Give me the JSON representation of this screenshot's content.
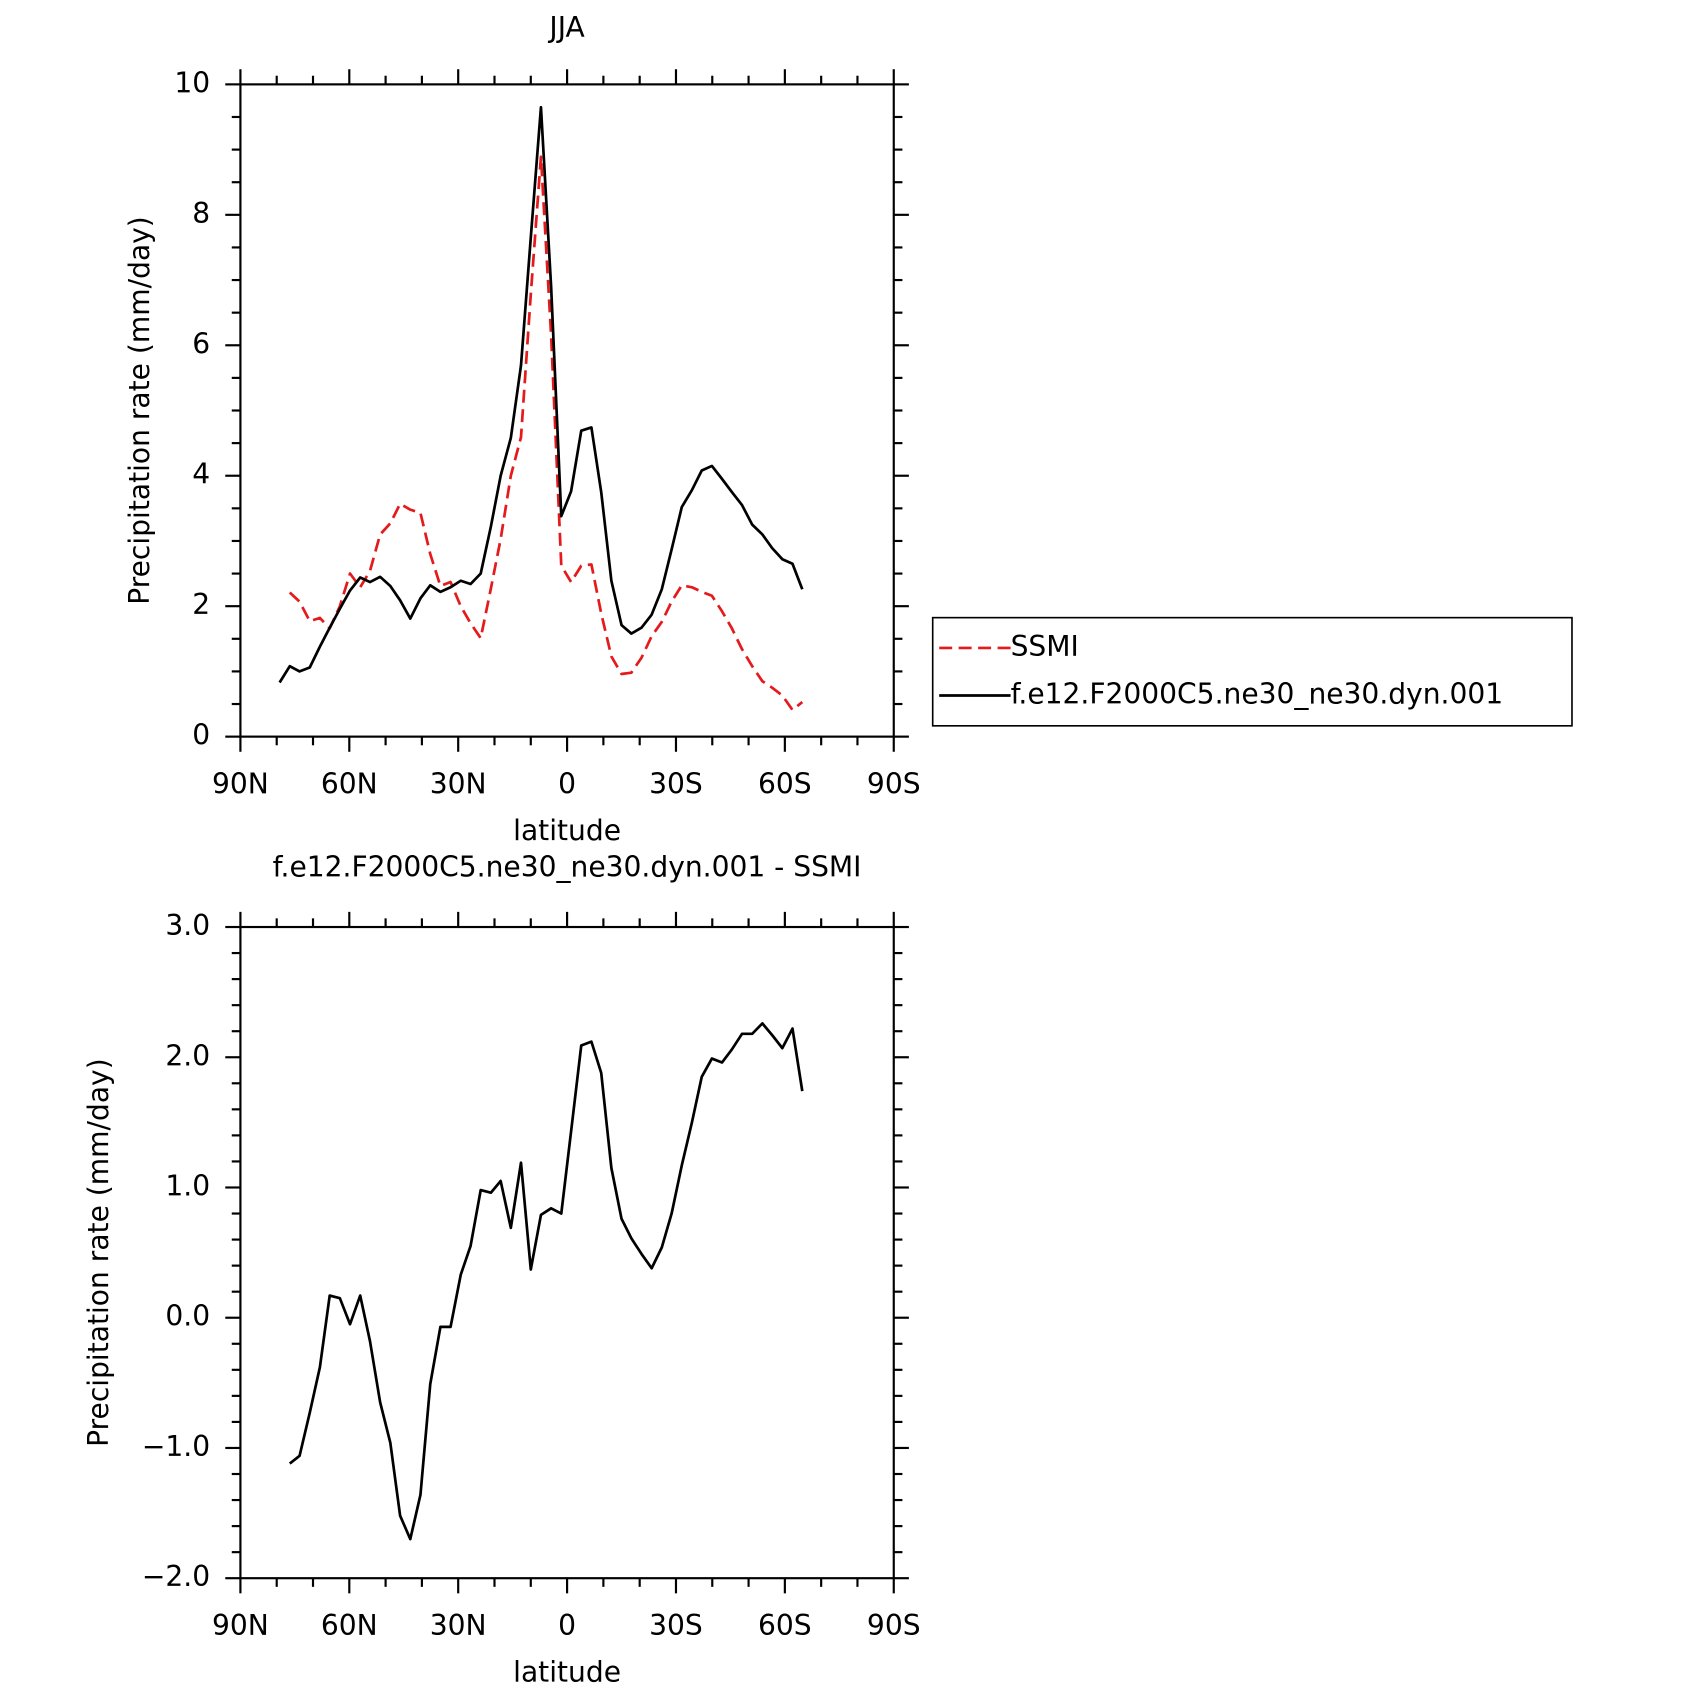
{
  "chart_data": [
    {
      "type": "line",
      "title": "JJA",
      "xlabel": "latitude",
      "ylabel": "Precipitation rate (mm/day)",
      "x": [
        79.2,
        76.4,
        73.7,
        70.9,
        68.1,
        65.4,
        62.6,
        59.8,
        57.0,
        54.3,
        51.5,
        48.7,
        46.0,
        43.2,
        40.4,
        37.7,
        34.9,
        32.1,
        29.3,
        26.6,
        23.8,
        21.0,
        18.3,
        15.5,
        12.7,
        10.0,
        7.2,
        4.4,
        1.6,
        -1.1,
        -3.9,
        -6.7,
        -9.4,
        -12.2,
        -15.0,
        -17.7,
        -20.5,
        -23.3,
        -26.1,
        -28.8,
        -31.6,
        -34.4,
        -37.1,
        -39.9,
        -42.7,
        -45.4,
        -48.2,
        -51.0,
        -53.8,
        -56.5,
        -59.3,
        -62.1,
        -64.8
      ],
      "series": [
        {
          "name": "SSMI",
          "color": "#e41a1c",
          "dashed": true,
          "values": [
            null,
            2.21,
            2.07,
            1.77,
            1.82,
            1.66,
            2.0,
            2.5,
            2.29,
            2.54,
            3.1,
            3.27,
            3.57,
            3.48,
            3.43,
            2.8,
            2.31,
            2.37,
            2.0,
            1.74,
            1.51,
            2.27,
            3.03,
            4.0,
            4.59,
            6.78,
            8.89,
            6.15,
            2.62,
            2.37,
            2.62,
            2.64,
            1.89,
            1.23,
            0.96,
            0.98,
            1.21,
            1.54,
            1.76,
            2.07,
            2.32,
            2.29,
            2.22,
            2.16,
            1.92,
            1.66,
            1.34,
            1.08,
            0.85,
            0.75,
            0.63,
            0.41,
            0.53
          ]
        },
        {
          "name": "f.e12.F2000C5.ne30_ne30.dyn.001",
          "color": "#000000",
          "dashed": false,
          "values": [
            0.83,
            1.08,
            1.0,
            1.06,
            1.38,
            1.67,
            1.96,
            2.24,
            2.44,
            2.37,
            2.45,
            2.31,
            2.09,
            1.81,
            2.12,
            2.32,
            2.22,
            2.29,
            2.39,
            2.34,
            2.5,
            3.22,
            4.0,
            4.58,
            5.69,
            7.65,
            9.65,
            6.9,
            3.38,
            3.76,
            4.69,
            4.74,
            3.75,
            2.39,
            1.71,
            1.58,
            1.67,
            1.87,
            2.26,
            2.87,
            3.52,
            3.78,
            4.08,
            4.15,
            3.95,
            3.75,
            3.55,
            3.25,
            3.1,
            2.89,
            2.72,
            2.65,
            2.26
          ]
        }
      ],
      "xlim": [
        90,
        -90
      ],
      "xticks": [
        {
          "value": 90,
          "label": "90N"
        },
        {
          "value": 60,
          "label": "60N"
        },
        {
          "value": 30,
          "label": "30N"
        },
        0,
        {
          "value": -30,
          "label": "30S"
        },
        {
          "value": -60,
          "label": "60S"
        },
        {
          "value": -90,
          "label": "90S"
        }
      ],
      "ylim": [
        0,
        10
      ],
      "yticks": [
        0,
        2,
        4,
        6,
        8,
        10
      ],
      "legend": "right"
    },
    {
      "type": "line",
      "title": "f.e12.F2000C5.ne30_ne30.dyn.001 - SSMI",
      "xlabel": "latitude",
      "ylabel": "Precipitation rate (mm/day)",
      "x": [
        79.2,
        76.4,
        73.7,
        70.9,
        68.1,
        65.4,
        62.6,
        59.8,
        57.0,
        54.3,
        51.5,
        48.7,
        46.0,
        43.2,
        40.4,
        37.7,
        34.9,
        32.1,
        29.3,
        26.6,
        23.8,
        21.0,
        18.3,
        15.5,
        12.7,
        10.0,
        7.2,
        4.4,
        1.6,
        -1.1,
        -3.9,
        -6.7,
        -9.4,
        -12.2,
        -15.0,
        -17.7,
        -20.5,
        -23.3,
        -26.1,
        -28.8,
        -31.6,
        -34.4,
        -37.1,
        -39.9,
        -42.7,
        -45.4,
        -48.2,
        -51.0,
        -53.8,
        -56.5,
        -59.3,
        -62.1,
        -64.8
      ],
      "series": [
        {
          "color": "#000000",
          "dashed": false,
          "values": [
            null,
            -1.12,
            -1.06,
            -0.73,
            -0.38,
            0.17,
            0.15,
            -0.05,
            0.17,
            -0.18,
            -0.65,
            -0.96,
            -1.52,
            -1.7,
            -1.36,
            -0.51,
            -0.07,
            -0.07,
            0.33,
            0.55,
            0.98,
            0.96,
            1.05,
            0.69,
            1.19,
            0.37,
            0.79,
            0.84,
            0.8,
            1.43,
            2.09,
            2.12,
            1.88,
            1.15,
            0.76,
            0.61,
            0.49,
            0.38,
            0.54,
            0.8,
            1.17,
            1.5,
            1.85,
            1.99,
            1.96,
            2.06,
            2.18,
            2.18,
            2.26,
            2.17,
            2.07,
            2.22,
            1.74
          ]
        }
      ],
      "xlim": [
        90,
        -90
      ],
      "xticks": [
        {
          "value": 90,
          "label": "90N"
        },
        {
          "value": 60,
          "label": "60N"
        },
        {
          "value": 30,
          "label": "30N"
        },
        0,
        {
          "value": -30,
          "label": "30S"
        },
        {
          "value": -60,
          "label": "60S"
        },
        {
          "value": -90,
          "label": "90S"
        }
      ],
      "ylim": [
        -2,
        3
      ],
      "yticks": [
        {
          "value": -2,
          "label": "−2.0"
        },
        {
          "value": -1,
          "label": "−1.0"
        },
        {
          "value": 0,
          "label": "0.0"
        },
        {
          "value": 1,
          "label": "1.0"
        },
        {
          "value": 2,
          "label": "2.0"
        },
        {
          "value": 3,
          "label": "3.0"
        }
      ]
    }
  ]
}
